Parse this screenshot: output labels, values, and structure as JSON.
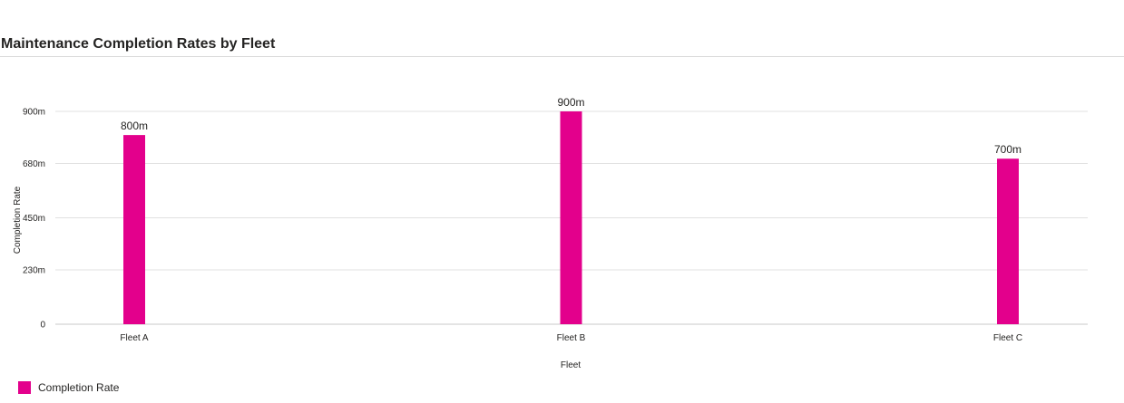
{
  "chart_data": {
    "type": "bar",
    "title": "Maintenance Completion Rates by Fleet",
    "xlabel": "Fleet",
    "ylabel": "Completion Rate",
    "categories": [
      "Fleet A",
      "Fleet B",
      "Fleet C"
    ],
    "series": [
      {
        "name": "Completion Rate",
        "values": [
          0.8,
          0.9,
          0.7
        ],
        "data_labels": [
          "800m",
          "900m",
          "700m"
        ],
        "color": "#e3008c"
      }
    ],
    "ylim": [
      0,
      0.9
    ],
    "yticks": [
      0,
      0.23,
      0.45,
      0.68,
      0.9
    ],
    "ytick_labels": [
      "0",
      "230m",
      "450m",
      "680m",
      "900m"
    ],
    "grid": true,
    "legend_position": "bottom-left"
  }
}
